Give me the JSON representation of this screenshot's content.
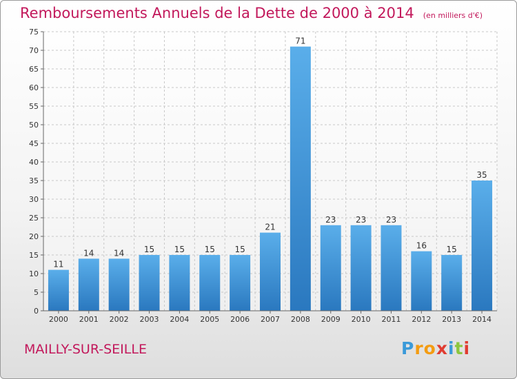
{
  "chart_data": {
    "type": "bar",
    "title": "Remboursements Annuels de la Dette de 2000 à 2014",
    "unit": "(en milliers d'€)",
    "categories": [
      "2000",
      "2001",
      "2002",
      "2003",
      "2004",
      "2005",
      "2006",
      "2007",
      "2008",
      "2009",
      "2010",
      "2011",
      "2012",
      "2013",
      "2014"
    ],
    "values": [
      11,
      14,
      14,
      15,
      15,
      15,
      15,
      21,
      71,
      23,
      23,
      23,
      16,
      15,
      35
    ],
    "ylim": [
      0,
      75
    ],
    "yticks": [
      0,
      5,
      10,
      15,
      20,
      25,
      30,
      35,
      40,
      45,
      50,
      55,
      60,
      65,
      70,
      75
    ],
    "grid": true,
    "bar_color": "#4a9ede"
  },
  "commune": "MAILLY-SUR-SEILLE",
  "logo": {
    "text": "Proxiti",
    "letters": [
      "P",
      "r",
      "o",
      "x",
      "i",
      "t",
      "i"
    ],
    "colors": [
      "#3a9ad9",
      "#f39c12",
      "#f39c12",
      "#e03c31",
      "#3a9ad9",
      "#8cc63f",
      "#e03c31"
    ]
  }
}
